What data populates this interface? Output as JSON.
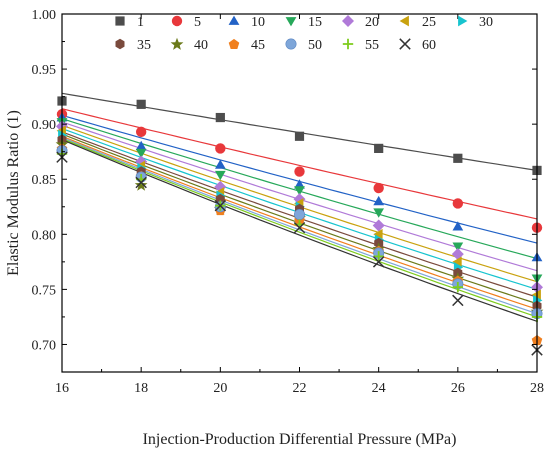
{
  "chart_data": {
    "type": "scatter",
    "xlabel": "Injection-Production Differential Pressure (MPa)",
    "ylabel": "Elastic Modulus Ratio (1)",
    "xlim": [
      16,
      28
    ],
    "ylim": [
      0.675,
      1.0
    ],
    "xticks": [
      16,
      18,
      20,
      22,
      24,
      26,
      28
    ],
    "yticks": [
      0.7,
      0.75,
      0.8,
      0.85,
      0.9,
      0.95,
      1.0
    ],
    "xtick_labels": [
      "16",
      "18",
      "20",
      "22",
      "24",
      "26",
      "28"
    ],
    "ytick_labels": [
      "0.70",
      "0.75",
      "0.80",
      "0.85",
      "0.90",
      "0.95",
      "1.00"
    ],
    "grid": false,
    "legend_position": "top",
    "x": [
      16,
      18,
      20,
      22,
      24,
      26,
      28
    ],
    "series": [
      {
        "name": "1",
        "marker": "square",
        "color": "#4d4d4d",
        "values": [
          0.921,
          0.918,
          0.906,
          0.889,
          0.878,
          0.869,
          0.858
        ],
        "fit": [
          0.928,
          0.858
        ]
      },
      {
        "name": "5",
        "marker": "circle",
        "color": "#e8383b",
        "values": [
          0.909,
          0.893,
          0.878,
          0.857,
          0.842,
          0.828,
          0.806
        ],
        "fit": [
          0.914,
          0.814
        ]
      },
      {
        "name": "10",
        "marker": "triangle-up",
        "color": "#2262c6",
        "values": [
          0.906,
          0.88,
          0.863,
          0.845,
          0.83,
          0.807,
          0.779
        ],
        "fit": [
          0.908,
          0.792
        ]
      },
      {
        "name": "15",
        "marker": "triangle-down",
        "color": "#27a85a",
        "values": [
          0.902,
          0.874,
          0.854,
          0.84,
          0.82,
          0.789,
          0.76
        ],
        "fit": [
          0.905,
          0.778
        ]
      },
      {
        "name": "20",
        "marker": "diamond",
        "color": "#b07ad8",
        "values": [
          0.898,
          0.866,
          0.843,
          0.832,
          0.808,
          0.782,
          0.752
        ],
        "fit": [
          0.902,
          0.767
        ]
      },
      {
        "name": "25",
        "marker": "triangle-left",
        "color": "#c9a20f",
        "values": [
          0.894,
          0.862,
          0.838,
          0.828,
          0.8,
          0.775,
          0.745
        ],
        "fit": [
          0.899,
          0.757
        ]
      },
      {
        "name": "30",
        "marker": "triangle-right",
        "color": "#17c4cf",
        "values": [
          0.89,
          0.86,
          0.835,
          0.825,
          0.795,
          0.77,
          0.74
        ],
        "fit": [
          0.896,
          0.75
        ]
      },
      {
        "name": "35",
        "marker": "hexagon",
        "color": "#7a4a3d",
        "values": [
          0.886,
          0.857,
          0.832,
          0.823,
          0.792,
          0.765,
          0.735
        ],
        "fit": [
          0.893,
          0.743
        ]
      },
      {
        "name": "40",
        "marker": "star",
        "color": "#6b7a1a",
        "values": [
          0.882,
          0.845,
          0.823,
          0.815,
          0.787,
          0.76,
          0.73
        ],
        "fit": [
          0.891,
          0.737
        ]
      },
      {
        "name": "45",
        "marker": "pentagon",
        "color": "#f07f1e",
        "values": [
          0.878,
          0.853,
          0.822,
          0.813,
          0.785,
          0.758,
          0.704
        ],
        "fit": [
          0.889,
          0.732
        ]
      },
      {
        "name": "50",
        "marker": "sphere",
        "color": "#7ea6d9",
        "values": [
          0.876,
          0.852,
          0.825,
          0.818,
          0.783,
          0.755,
          0.728
        ],
        "fit": [
          0.888,
          0.728
        ]
      },
      {
        "name": "55",
        "marker": "plus",
        "color": "#7dcc1d",
        "values": [
          0.873,
          0.85,
          0.826,
          0.809,
          0.78,
          0.752,
          0.725
        ],
        "fit": [
          0.887,
          0.725
        ]
      },
      {
        "name": "60",
        "marker": "x",
        "color": "#333333",
        "values": [
          0.87,
          0.847,
          0.826,
          0.806,
          0.775,
          0.74,
          0.695
        ],
        "fit": [
          0.886,
          0.721
        ]
      }
    ]
  }
}
